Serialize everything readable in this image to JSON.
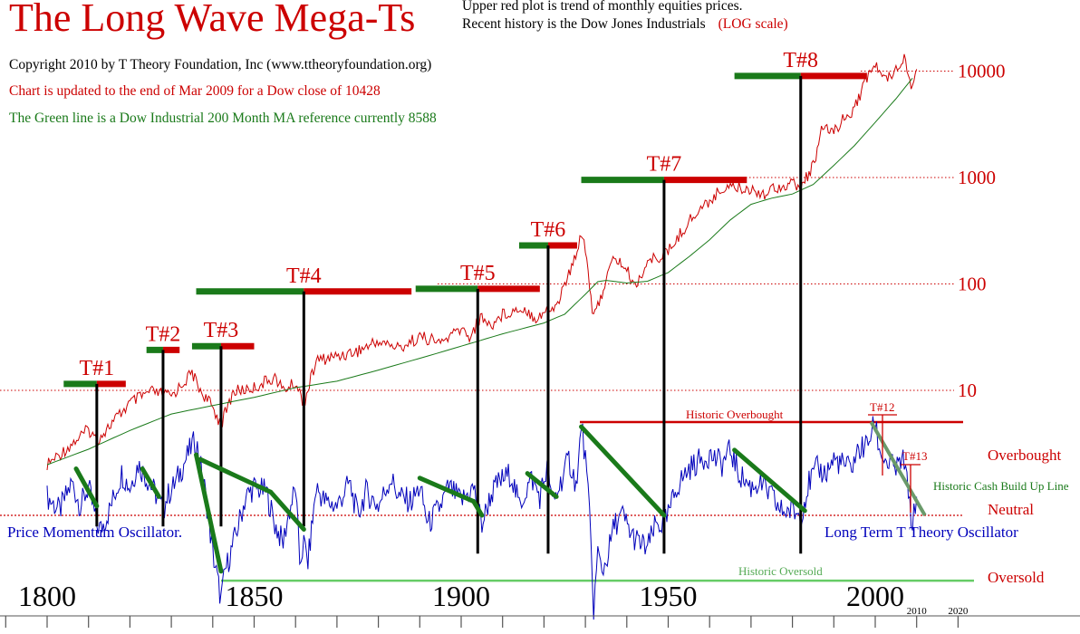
{
  "header": {
    "title": "The Long Wave Mega-Ts",
    "subtitle_line1": "Upper red plot is trend of monthly equities prices.",
    "subtitle_line2": "Recent history is the  Dow Jones Industrials",
    "subtitle_scale": "(LOG scale)",
    "copyright": "Copyright 2010 by T Theory Foundation, Inc (www.ttheoryfoundation.org)",
    "update_note": "Chart is updated to the end of Mar 2009 for a Dow close of 10428",
    "ma_note": "The Green line is a Dow Industrial 200 Month MA reference currently  8588"
  },
  "colors": {
    "price": "#cc0000",
    "moving_average": "#1a7a1a",
    "oscillator": "#0000bb",
    "t_green": "#1a7a1a",
    "t_red": "#cc0000",
    "oversold_line": "#66cc66",
    "cash_line": "#6a9a6a"
  },
  "chart_data": [
    {
      "type": "line",
      "title": "",
      "y_scale": "log",
      "y_ticks": [
        {
          "value": 10,
          "label": "10"
        },
        {
          "value": 100,
          "label": "100"
        },
        {
          "value": 1000,
          "label": "1000"
        },
        {
          "value": 10000,
          "label": "10000"
        }
      ],
      "x_ticks": [
        {
          "value": 1800,
          "label": "1800"
        },
        {
          "value": 1850,
          "label": "1850"
        },
        {
          "value": 1900,
          "label": "1900"
        },
        {
          "value": 1950,
          "label": "1950"
        },
        {
          "value": 2000,
          "label": "2000"
        },
        {
          "value": 2010,
          "label": "2010"
        },
        {
          "value": 2020,
          "label": "2020"
        }
      ],
      "series": [
        {
          "key": "price",
          "x": [
            1800,
            1805,
            1810,
            1812,
            1815,
            1820,
            1825,
            1830,
            1835,
            1837,
            1840,
            1842,
            1845,
            1850,
            1855,
            1857,
            1860,
            1862,
            1865,
            1870,
            1875,
            1880,
            1885,
            1890,
            1895,
            1900,
            1902,
            1905,
            1907,
            1910,
            1915,
            1918,
            1920,
            1923,
            1925,
            1927,
            1929,
            1930,
            1932,
            1935,
            1937,
            1940,
            1942,
            1945,
            1950,
            1955,
            1960,
            1965,
            1966,
            1970,
            1974,
            1975,
            1980,
            1982,
            1985,
            1987,
            1990,
            1995,
            1998,
            2000,
            2002,
            2005,
            2007,
            2008,
            2009,
            2010
          ],
          "y": [
            2.0,
            2.9,
            4.3,
            3.4,
            4.6,
            7.6,
            9.7,
            8.8,
            14.6,
            10.0,
            6.9,
            4.8,
            9.7,
            10.6,
            13.4,
            10.0,
            11.8,
            7.6,
            19.0,
            21.0,
            23.5,
            29.0,
            25.0,
            32.0,
            28.0,
            38.0,
            32.0,
            50.0,
            40.0,
            52.0,
            60.0,
            48.0,
            54.0,
            62.0,
            100.0,
            150.0,
            310.0,
            220.0,
            46.0,
            110.0,
            180.0,
            135.0,
            95.0,
            160.0,
            200.0,
            390.0,
            610.0,
            900.0,
            800.0,
            780.0,
            700.0,
            800.0,
            880.0,
            800.0,
            1280.0,
            2700.0,
            2800.0,
            4500.0,
            8800.0,
            11500.0,
            8300.0,
            10500.0,
            13900.0,
            9000.0,
            7000.0,
            10428.0
          ]
        },
        {
          "key": "moving_average",
          "x": [
            1800,
            1810,
            1820,
            1830,
            1840,
            1850,
            1860,
            1870,
            1880,
            1890,
            1900,
            1910,
            1920,
            1925,
            1930,
            1933,
            1935,
            1940,
            1945,
            1950,
            1955,
            1960,
            1965,
            1970,
            1975,
            1980,
            1985,
            1990,
            1995,
            2000,
            2005,
            2009
          ],
          "y": [
            2.0,
            2.8,
            4.2,
            6.0,
            7.2,
            8.6,
            10.6,
            12.2,
            15.5,
            20.0,
            26.0,
            34.0,
            43.0,
            52.0,
            80.0,
            105.0,
            108.0,
            102.0,
            106.0,
            128.0,
            180.0,
            260.0,
            400.0,
            560.0,
            640.0,
            700.0,
            860.0,
            1300.0,
            2000.0,
            3300.0,
            5500.0,
            8588.0
          ]
        }
      ],
      "reference_lines": [
        10,
        100,
        1000,
        10000
      ],
      "t_formations": [
        {
          "label": "T#1",
          "center": 1812,
          "start": 1804,
          "end": 1819,
          "low": 1813,
          "high_value": 11.5
        },
        {
          "label": "T#2",
          "center": 1828,
          "start": 1824,
          "end": 1832,
          "low": 1829,
          "high_value": 24
        },
        {
          "label": "T#3",
          "center": 1842,
          "start": 1835,
          "end": 1850,
          "low": 1843,
          "high_value": 26
        },
        {
          "label": "T#4",
          "center": 1862,
          "start": 1836,
          "end": 1888,
          "low": 1863,
          "high_value": 85
        },
        {
          "label": "T#5",
          "center": 1904,
          "start": 1889,
          "end": 1919,
          "low": 1905,
          "high_value": 90
        },
        {
          "label": "T#6",
          "center": 1921,
          "start": 1914,
          "end": 1928,
          "low": 1922,
          "high_value": 230
        },
        {
          "label": "T#7",
          "center": 1949,
          "start": 1929,
          "end": 1969,
          "low": 1950,
          "high_value": 950
        },
        {
          "label": "T#8",
          "center": 1982,
          "start": 1966,
          "end": 1998,
          "low": 1983,
          "high_value": 9000
        }
      ]
    },
    {
      "type": "line",
      "title": "",
      "series": [
        {
          "key": "oscillator",
          "name": "Price Momentum Oscillator.",
          "x": [
            1800,
            1803,
            1806,
            1808,
            1810,
            1812,
            1813,
            1815,
            1818,
            1820,
            1822,
            1824,
            1826,
            1828,
            1829,
            1831,
            1833,
            1835,
            1836,
            1838,
            1840,
            1842,
            1843,
            1845,
            1848,
            1850,
            1853,
            1855,
            1857,
            1858,
            1860,
            1861,
            1862,
            1863,
            1865,
            1867,
            1870,
            1873,
            1875,
            1877,
            1880,
            1883,
            1885,
            1888,
            1890,
            1892,
            1895,
            1897,
            1900,
            1903,
            1905,
            1907,
            1909,
            1912,
            1914,
            1917,
            1919,
            1921,
            1922,
            1924,
            1926,
            1928,
            1929,
            1930,
            1931,
            1932,
            1933,
            1934,
            1935,
            1937,
            1939,
            1941,
            1943,
            1945,
            1947,
            1949,
            1950,
            1952,
            1955,
            1958,
            1960,
            1963,
            1965,
            1967,
            1970,
            1972,
            1975,
            1977,
            1980,
            1982,
            1984,
            1986,
            1988,
            1990,
            1992,
            1994,
            1996,
            1998,
            2000,
            2001,
            2003,
            2005,
            2007,
            2008,
            2009,
            2010
          ],
          "y": [
            0.2,
            0.05,
            0.35,
            0.1,
            0.3,
            -0.1,
            -0.15,
            0.05,
            0.45,
            0.3,
            0.55,
            0.4,
            0.25,
            0.05,
            0.2,
            0.35,
            0.55,
            0.75,
            0.8,
            0.3,
            -0.4,
            -0.9,
            -0.6,
            -0.3,
            0.2,
            0.3,
            0.25,
            -0.1,
            -0.3,
            -0.05,
            0.3,
            -0.5,
            -0.3,
            -0.5,
            0.3,
            0.15,
            0.1,
            0.35,
            0.0,
            0.25,
            0.1,
            0.4,
            0.2,
            0.15,
            0.3,
            -0.1,
            0.1,
            0.3,
            0.15,
            0.3,
            -0.1,
            0.2,
            0.35,
            0.45,
            0.1,
            0.4,
            0.2,
            0.55,
            0.1,
            0.35,
            0.6,
            0.3,
            1.0,
            0.6,
            0.0,
            -1.0,
            -0.4,
            -0.6,
            -0.5,
            -0.1,
            0.0,
            -0.2,
            -0.3,
            -0.35,
            -0.1,
            -0.1,
            0.0,
            0.3,
            0.5,
            0.6,
            0.65,
            0.55,
            0.7,
            0.45,
            0.3,
            0.35,
            0.2,
            0.05,
            0.05,
            0.0,
            0.35,
            0.5,
            0.45,
            0.6,
            0.55,
            0.5,
            0.7,
            0.75,
            1.0,
            0.7,
            0.55,
            0.5,
            0.6,
            0.2,
            -0.1,
            0.2
          ]
        }
      ],
      "reference_lines": [
        {
          "label": "Historic Overbought",
          "value": 1.0
        },
        {
          "label": "Neutral",
          "value": 0.0
        },
        {
          "label": "Historic Oversold",
          "value": -0.7
        }
      ],
      "decline_segments": [
        {
          "x": [
            1807,
            1812
          ],
          "y": [
            0.5,
            0.1
          ]
        },
        {
          "x": [
            1823,
            1827
          ],
          "y": [
            0.5,
            0.2
          ]
        },
        {
          "x": [
            1836,
            1842
          ],
          "y": [
            0.65,
            -0.6
          ]
        },
        {
          "x": [
            1837,
            1854
          ],
          "y": [
            0.6,
            0.25
          ]
        },
        {
          "x": [
            1854,
            1862
          ],
          "y": [
            0.25,
            -0.15
          ]
        },
        {
          "x": [
            1890,
            1903
          ],
          "y": [
            0.4,
            0.15
          ]
        },
        {
          "x": [
            1903,
            1905
          ],
          "y": [
            0.15,
            0.0
          ]
        },
        {
          "x": [
            1916,
            1923
          ],
          "y": [
            0.45,
            0.2
          ]
        },
        {
          "x": [
            1929,
            1949
          ],
          "y": [
            0.95,
            0.0
          ]
        },
        {
          "x": [
            1966,
            1983
          ],
          "y": [
            0.7,
            0.05
          ]
        }
      ],
      "cash_line": {
        "label": "Historic Cash Build Up Line",
        "x": [
          1999,
          2012
        ],
        "y": [
          1.0,
          0.0
        ]
      },
      "annotations": {
        "t12": "T#12",
        "t13": "T#13"
      },
      "labels": {
        "overbought": "Overbought",
        "neutral": "Neutral",
        "oversold": "Oversold",
        "right_name": "Long Term T Theory Oscillator"
      }
    }
  ]
}
